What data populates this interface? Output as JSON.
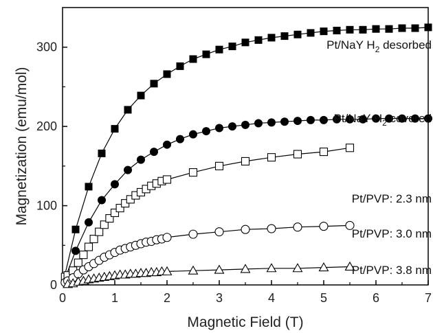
{
  "chart_data": {
    "type": "scatter",
    "xlabel": "Magnetic Field (T)",
    "ylabel": "Magnetization (emu/mol)",
    "xlim": [
      0,
      7
    ],
    "ylim": [
      0,
      350
    ],
    "xticks": [
      "0",
      "1",
      "2",
      "3",
      "4",
      "5",
      "6",
      "7"
    ],
    "yticks": [
      "0",
      "100",
      "200",
      "300"
    ],
    "grid": false,
    "series": [
      {
        "name": "Pt/NaY H2 desorbed",
        "label_main": "Pt/NaY H",
        "label_sub": "2",
        "label_tail": " desorbed",
        "marker": "filled-square",
        "color": "#000000",
        "x": [
          0.25,
          0.5,
          0.75,
          1.0,
          1.25,
          1.5,
          1.75,
          2.0,
          2.25,
          2.5,
          2.75,
          3.0,
          3.25,
          3.5,
          3.75,
          4.0,
          4.25,
          4.5,
          4.75,
          5.0,
          5.25,
          5.5,
          5.75,
          6.0,
          6.25,
          6.5,
          6.75,
          7.0
        ],
        "y": [
          70,
          124,
          166,
          197,
          221,
          239,
          254,
          266,
          276,
          285,
          291,
          297,
          301,
          306,
          309,
          312,
          314,
          316,
          318,
          320,
          321,
          322,
          322,
          323,
          323,
          324,
          324,
          325
        ]
      },
      {
        "name": "Pt/NaY H2 covered",
        "label_main": "Pt/NaY H",
        "label_sub": "2",
        "label_tail": " covered",
        "marker": "filled-circle",
        "color": "#000000",
        "x": [
          0.25,
          0.5,
          0.75,
          1.0,
          1.25,
          1.5,
          1.75,
          2.0,
          2.25,
          2.5,
          2.75,
          3.0,
          3.25,
          3.5,
          3.75,
          4.0,
          4.25,
          4.5,
          4.75,
          5.0,
          5.25,
          5.5,
          5.75,
          6.0,
          6.25,
          6.5,
          6.75,
          7.0
        ],
        "y": [
          43,
          79,
          107,
          127,
          145,
          158,
          168,
          177,
          184,
          190,
          194,
          198,
          200,
          202,
          204,
          205,
          206,
          207,
          208,
          208,
          209,
          209,
          209,
          210,
          210,
          210,
          210,
          210
        ]
      },
      {
        "name": "Pt/PVP: 2.3 nm",
        "label_main": "Pt/PVP: 2.3 nm",
        "marker": "open-square",
        "color": "#000000",
        "x": [
          0.05,
          0.1,
          0.2,
          0.3,
          0.4,
          0.5,
          0.6,
          0.7,
          0.8,
          0.9,
          1.0,
          1.1,
          1.2,
          1.3,
          1.4,
          1.5,
          1.6,
          1.7,
          1.8,
          1.9,
          2.0,
          2.5,
          3.0,
          3.5,
          4.0,
          4.5,
          5.0,
          5.5
        ],
        "y": [
          10,
          12,
          18,
          28,
          38,
          48,
          58,
          67,
          76,
          84,
          91,
          97,
          103,
          108,
          113,
          117,
          121,
          125,
          128,
          131,
          133,
          142,
          150,
          156,
          161,
          165,
          168,
          173
        ]
      },
      {
        "name": "Pt/PVP: 3.0 nm",
        "label_main": "Pt/PVP: 3.0 nm",
        "marker": "open-circle",
        "color": "#000000",
        "x": [
          0.05,
          0.1,
          0.2,
          0.3,
          0.4,
          0.5,
          0.6,
          0.7,
          0.8,
          0.9,
          1.0,
          1.1,
          1.2,
          1.3,
          1.4,
          1.5,
          1.6,
          1.7,
          1.8,
          1.9,
          2.0,
          2.5,
          3.0,
          3.5,
          4.0,
          4.5,
          5.0,
          5.5
        ],
        "y": [
          3,
          5,
          9,
          14,
          19,
          23,
          27,
          31,
          35,
          38,
          41,
          44,
          46,
          48,
          50,
          52,
          54,
          55,
          57,
          58,
          60,
          64,
          67,
          70,
          71,
          73,
          74,
          75
        ]
      },
      {
        "name": "Pt/PVP: 3.8 nm",
        "label_main": "Pt/PVP: 3.8 nm",
        "marker": "open-triangle",
        "color": "#000000",
        "x": [
          0.1,
          0.2,
          0.3,
          0.4,
          0.5,
          0.6,
          0.7,
          0.8,
          0.9,
          1.0,
          1.1,
          1.2,
          1.3,
          1.4,
          1.5,
          1.6,
          1.7,
          1.8,
          1.9,
          2.0,
          2.5,
          3.0,
          3.5,
          4.0,
          4.5,
          5.0,
          5.5
        ],
        "y": [
          1,
          2,
          4,
          5,
          7,
          8,
          9,
          10,
          11,
          12,
          13,
          13,
          14,
          14,
          15,
          15,
          16,
          16,
          17,
          17,
          18,
          19,
          20,
          21,
          21,
          22,
          23
        ]
      }
    ]
  }
}
